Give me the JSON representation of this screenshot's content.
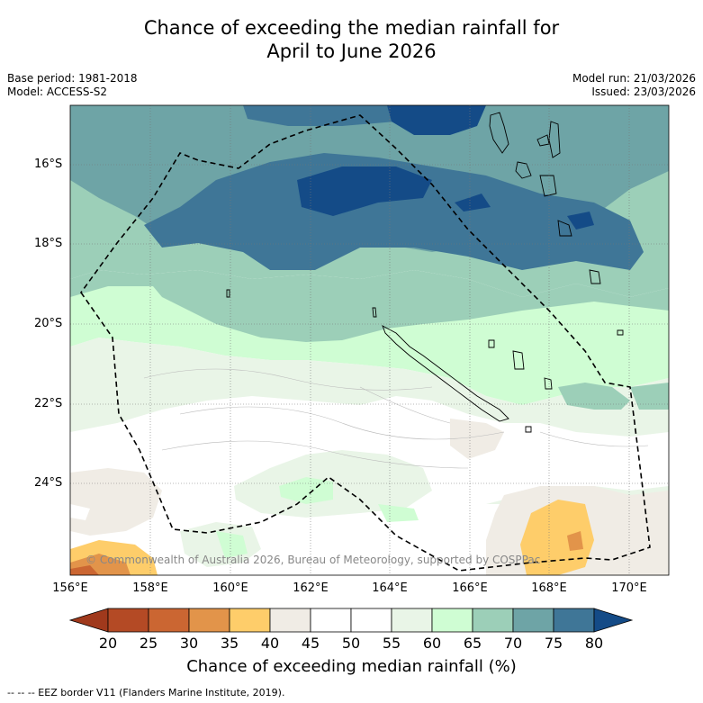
{
  "title_line1": "Chance of exceeding the median rainfall for",
  "title_line2": "April to June 2026",
  "base_period": "Base period: 1981-2018",
  "model": "Model: ACCESS-S2",
  "model_run": "Model run: 21/03/2026",
  "issued": "Issued: 23/03/2026",
  "lat_labels": [
    "16°S",
    "18°S",
    "20°S",
    "22°S",
    "24°S"
  ],
  "lon_labels": [
    "156°E",
    "158°E",
    "160°E",
    "162°E",
    "164°E",
    "166°E",
    "168°E",
    "170°E"
  ],
  "copyright": "© Commonwealth of Australia 2026, Bureau of Meteorology, supported by COSPPac",
  "colorbar": {
    "ticks": [
      "20",
      "25",
      "30",
      "35",
      "40",
      "45",
      "50",
      "55",
      "60",
      "65",
      "70",
      "75",
      "80"
    ],
    "colors": [
      "#a0391c",
      "#b44a25",
      "#cb6632",
      "#e2944a",
      "#fecd6a",
      "#f0ece5",
      "#ffffff",
      "#ffffff",
      "#e9f5e7",
      "#cffdd3",
      "#9ccfb8",
      "#6ea4a6",
      "#3f7697",
      "#144b87"
    ],
    "title": "Chance of exceeding median rainfall (%)"
  },
  "legend_footer": "--  --  -- EEZ border V11 (Flanders Marine Institute, 2019)."
}
